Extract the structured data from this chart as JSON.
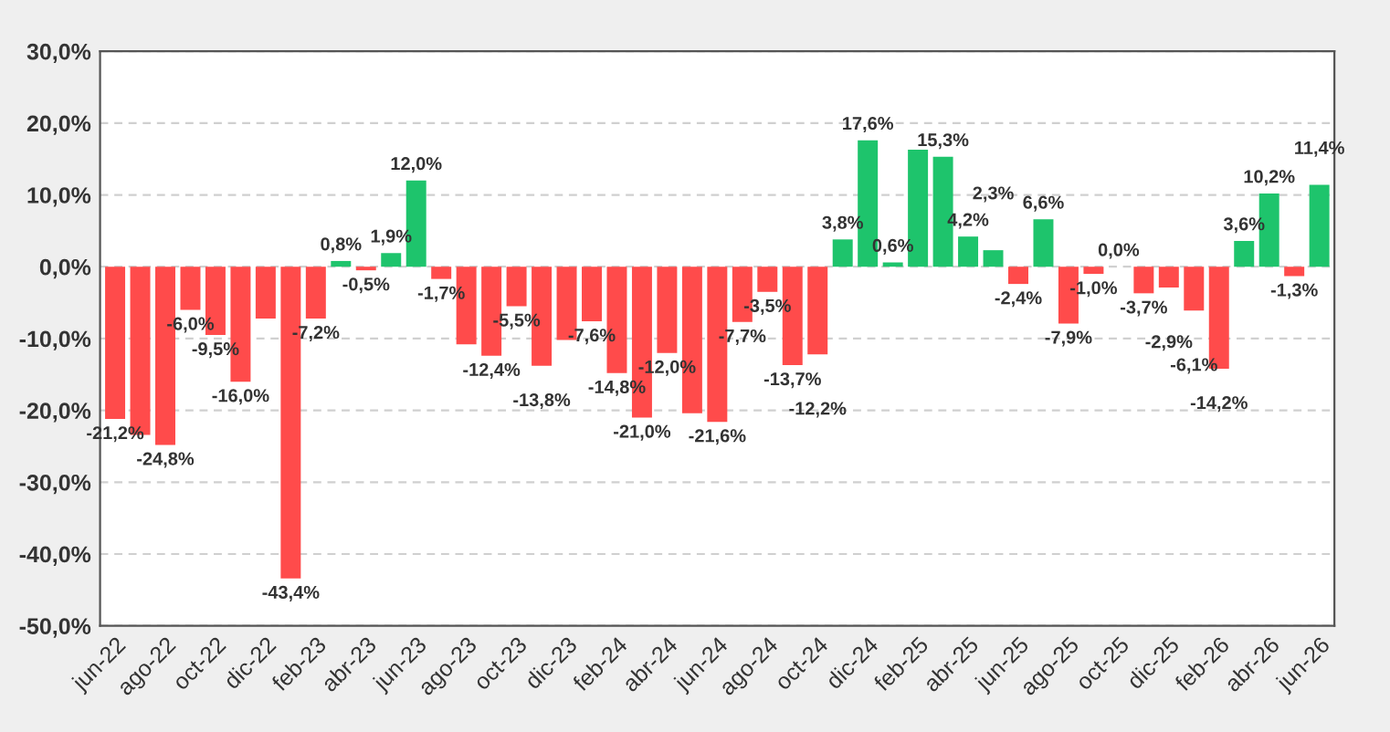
{
  "chart_data": {
    "type": "bar",
    "categories": [
      "jun-22",
      null,
      "ago-22",
      null,
      "oct-22",
      null,
      "dic-22",
      null,
      "feb-23",
      null,
      "abr-23",
      null,
      "jun-23",
      null,
      "ago-23",
      null,
      "oct-23",
      null,
      "dic-23",
      null,
      "feb-24",
      null,
      "abr-24",
      null,
      "jun-24",
      null,
      "ago-24",
      null,
      "oct-24",
      null,
      "dic-24",
      null,
      "feb-25",
      null,
      "abr-25",
      null,
      "jun-25",
      null,
      "ago-25",
      null,
      "oct-25",
      null,
      "dic-25",
      null,
      "feb-26",
      null,
      "abr-26",
      null,
      "jun-26"
    ],
    "values": [
      -21.2,
      -23.4,
      -24.8,
      -6.0,
      -9.5,
      -16.0,
      -7.2,
      -43.4,
      -7.2,
      0.8,
      -0.5,
      1.9,
      12.0,
      -1.7,
      -10.8,
      -12.4,
      -5.5,
      -13.8,
      -10.2,
      -7.6,
      -14.8,
      -21.0,
      -12.0,
      -20.4,
      -21.6,
      -7.7,
      -3.5,
      -13.7,
      -12.2,
      3.8,
      17.6,
      0.6,
      16.3,
      15.3,
      4.2,
      2.3,
      -2.4,
      6.6,
      -7.9,
      -1.0,
      0.0,
      -3.7,
      -2.9,
      -6.1,
      -14.2,
      3.6,
      10.2,
      -1.3,
      11.4
    ],
    "value_labels": [
      "-21,2%",
      null,
      "-24,8%",
      "-6,0%",
      "-9,5%",
      "-16,0%",
      null,
      "-43,4%",
      "-7,2%",
      "0,8%",
      "-0,5%",
      "1,9%",
      "12,0%",
      "-1,7%",
      null,
      "-12,4%",
      "-5,5%",
      "-13,8%",
      null,
      "-7,6%",
      "-14,8%",
      "-21,0%",
      "-12,0%",
      null,
      "-21,6%",
      "-7,7%",
      "-3,5%",
      "-13,7%",
      "-12,2%",
      "3,8%",
      "17,6%",
      "0,6%",
      null,
      "15,3%",
      "4,2%",
      "2,3%",
      "-2,4%",
      "6,6%",
      "-7,9%",
      "-1,0%",
      "0,0%",
      "-3,7%",
      "-2,9%",
      "-6,1%",
      "-14,2%",
      "3,6%",
      "10,2%",
      "-1,3%",
      "11,4%"
    ],
    "colors": [
      "#ff4b4b",
      "#ff4b4b",
      "#ff4b4b",
      "#ff4b4b",
      "#ff4b4b",
      "#ff4b4b",
      "#ff4b4b",
      "#ff4b4b",
      "#ff4b4b",
      "#1ec46c",
      "#ff4b4b",
      "#1ec46c",
      "#1ec46c",
      "#ff4b4b",
      "#ff4b4b",
      "#ff4b4b",
      "#ff4b4b",
      "#ff4b4b",
      "#ff4b4b",
      "#ff4b4b",
      "#ff4b4b",
      "#ff4b4b",
      "#ff4b4b",
      "#ff4b4b",
      "#ff4b4b",
      "#ff4b4b",
      "#ff4b4b",
      "#ff4b4b",
      "#ff4b4b",
      "#1ec46c",
      "#1ec46c",
      "#1ec46c",
      "#1ec46c",
      "#1ec46c",
      "#1ec46c",
      "#1ec46c",
      "#ff4b4b",
      "#1ec46c",
      "#ff4b4b",
      "#ff4b4b",
      "#ff4b4b",
      "#ff4b4b",
      "#ff4b4b",
      "#ff4b4b",
      "#ff4b4b",
      "#1ec46c",
      "#1ec46c",
      "#ff4b4b",
      "#1ec46c"
    ],
    "ylim": [
      -50,
      30
    ],
    "yticks": [
      {
        "value": -50,
        "label": "-50,0%"
      },
      {
        "value": -40,
        "label": "-40,0%"
      },
      {
        "value": -30,
        "label": "-30,0%"
      },
      {
        "value": -20,
        "label": "-20,0%"
      },
      {
        "value": -10,
        "label": "-10,0%"
      },
      {
        "value": 0,
        "label": "0,0%"
      },
      {
        "value": 10,
        "label": "10,0%"
      },
      {
        "value": 20,
        "label": "20,0%"
      },
      {
        "value": 30,
        "label": "30,0%"
      }
    ],
    "grid": "y",
    "legend": false
  }
}
